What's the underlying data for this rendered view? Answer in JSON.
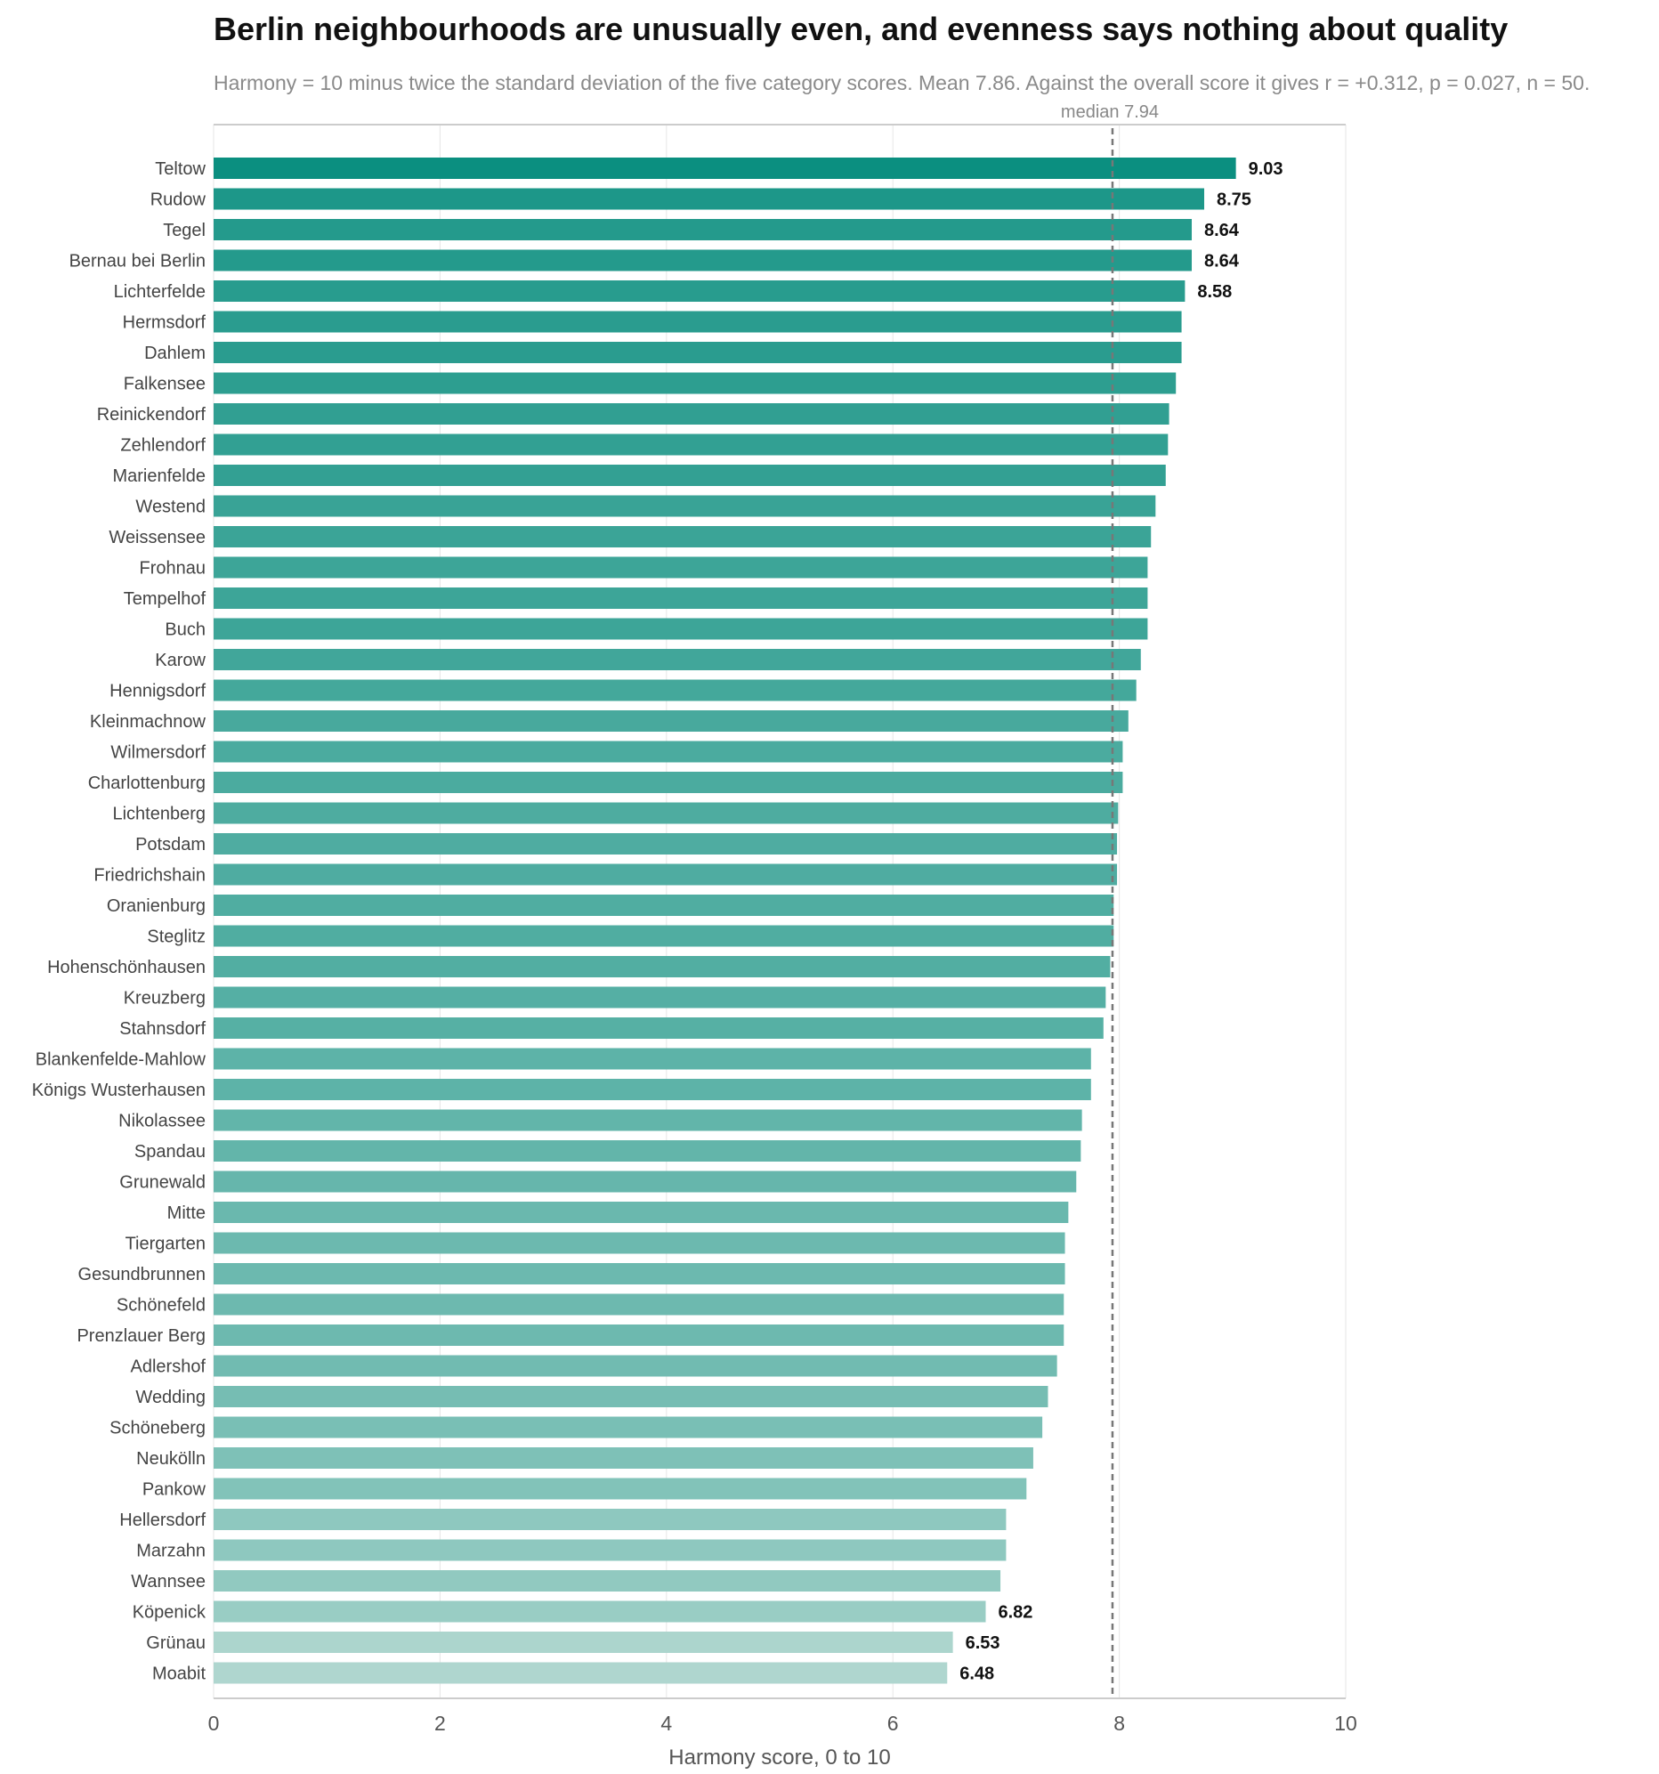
{
  "chart_data": {
    "type": "bar",
    "orientation": "horizontal",
    "title": "Berlin neighbourhoods are unusually even, and evenness says nothing about quality",
    "subtitle": "Harmony = 10 minus twice the standard deviation of the five category scores. Mean 7.86. Against the overall score it gives r = +0.312, p = 0.027, n = 50.",
    "xlabel": "Harmony score, 0 to 10",
    "ylabel": "",
    "xlim": [
      0,
      10
    ],
    "xticks": [
      "0",
      "2",
      "4",
      "6",
      "8",
      "10"
    ],
    "grid": true,
    "median": {
      "value": 7.94,
      "label": "median 7.94"
    },
    "categories": [
      "Teltow",
      "Rudow",
      "Tegel",
      "Bernau bei Berlin",
      "Lichterfelde",
      "Hermsdorf",
      "Dahlem",
      "Falkensee",
      "Reinickendorf",
      "Zehlendorf",
      "Marienfelde",
      "Westend",
      "Weissensee",
      "Frohnau",
      "Tempelhof",
      "Buch",
      "Karow",
      "Hennigsdorf",
      "Kleinmachnow",
      "Wilmersdorf",
      "Charlottenburg",
      "Lichtenberg",
      "Potsdam",
      "Friedrichshain",
      "Oranienburg",
      "Steglitz",
      "Hohenschönhausen",
      "Kreuzberg",
      "Stahnsdorf",
      "Blankenfelde-Mahlow",
      "Königs Wusterhausen",
      "Nikolassee",
      "Spandau",
      "Grunewald",
      "Mitte",
      "Tiergarten",
      "Gesundbrunnen",
      "Schönefeld",
      "Prenzlauer Berg",
      "Adlershof",
      "Wedding",
      "Schöneberg",
      "Neukölln",
      "Pankow",
      "Hellersdorf",
      "Marzahn",
      "Wannsee",
      "Köpenick",
      "Grünau",
      "Moabit"
    ],
    "values": [
      9.03,
      8.75,
      8.64,
      8.64,
      8.58,
      8.55,
      8.55,
      8.5,
      8.44,
      8.43,
      8.41,
      8.32,
      8.28,
      8.25,
      8.25,
      8.25,
      8.19,
      8.15,
      8.08,
      8.03,
      8.03,
      7.99,
      7.98,
      7.98,
      7.95,
      7.95,
      7.92,
      7.88,
      7.86,
      7.75,
      7.75,
      7.67,
      7.66,
      7.62,
      7.55,
      7.52,
      7.52,
      7.51,
      7.51,
      7.45,
      7.37,
      7.32,
      7.24,
      7.18,
      7.0,
      7.0,
      6.95,
      6.82,
      6.53,
      6.48
    ],
    "value_labels": [
      "9.03",
      "8.75",
      "8.64",
      "8.64",
      "8.58",
      "",
      "",
      "",
      "",
      "",
      "",
      "",
      "",
      "",
      "",
      "",
      "",
      "",
      "",
      "",
      "",
      "",
      "",
      "",
      "",
      "",
      "",
      "",
      "",
      "",
      "",
      "",
      "",
      "",
      "",
      "",
      "",
      "",
      "",
      "",
      "",
      "",
      "",
      "",
      "",
      "",
      "",
      "6.82",
      "6.53",
      "6.48"
    ],
    "colors": {
      "high": "#0b8f80",
      "low": "#afd6cf",
      "median_line": "#777777",
      "grid": "#e6e6e6"
    }
  }
}
